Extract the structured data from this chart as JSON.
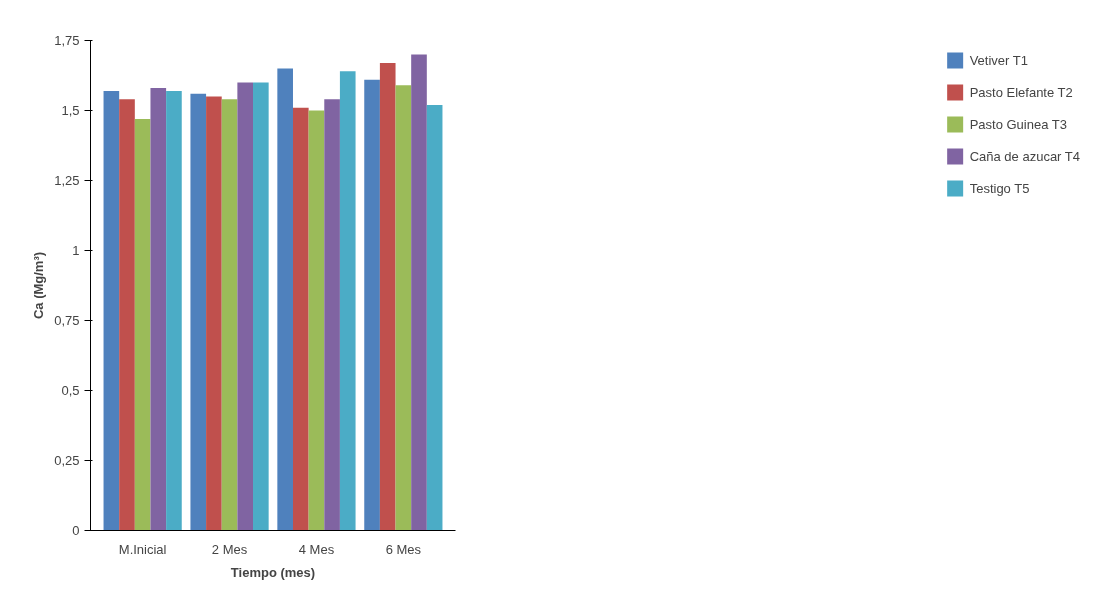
{
  "chart_data": {
    "type": "bar",
    "xlabel": "Tiempo (mes)",
    "ylabel": "Ca (Mg/m³)",
    "categories": [
      "M.Inicial",
      "2 Mes",
      "4 Mes",
      "6 Mes"
    ],
    "series": [
      {
        "name": "Vetiver T1",
        "color": "#4f81bd",
        "values": [
          1.57,
          1.56,
          1.65,
          1.61
        ]
      },
      {
        "name": "Pasto Elefante T2",
        "color": "#c0504d",
        "values": [
          1.54,
          1.55,
          1.51,
          1.67
        ]
      },
      {
        "name": "Pasto Guinea T3",
        "color": "#9bbb59",
        "values": [
          1.47,
          1.54,
          1.5,
          1.59
        ]
      },
      {
        "name": "Caña de azucar T4",
        "color": "#8064a2",
        "values": [
          1.58,
          1.6,
          1.54,
          1.7
        ]
      },
      {
        "name": "Testigo T5",
        "color": "#4bacc6",
        "values": [
          1.57,
          1.6,
          1.64,
          1.52
        ]
      }
    ],
    "ylim": [
      0,
      1.75
    ],
    "yticks": [
      0,
      {
        "value": 0.25,
        "label": "0,25"
      },
      {
        "value": 0.5,
        "label": "0,5"
      },
      {
        "value": 0.75,
        "label": "0,75"
      },
      1,
      {
        "value": 1.25,
        "label": "1,25"
      },
      {
        "value": 1.5,
        "label": "1,5"
      },
      {
        "value": 1.75,
        "label": "1,75"
      }
    ],
    "grid": false,
    "legend": "right"
  }
}
